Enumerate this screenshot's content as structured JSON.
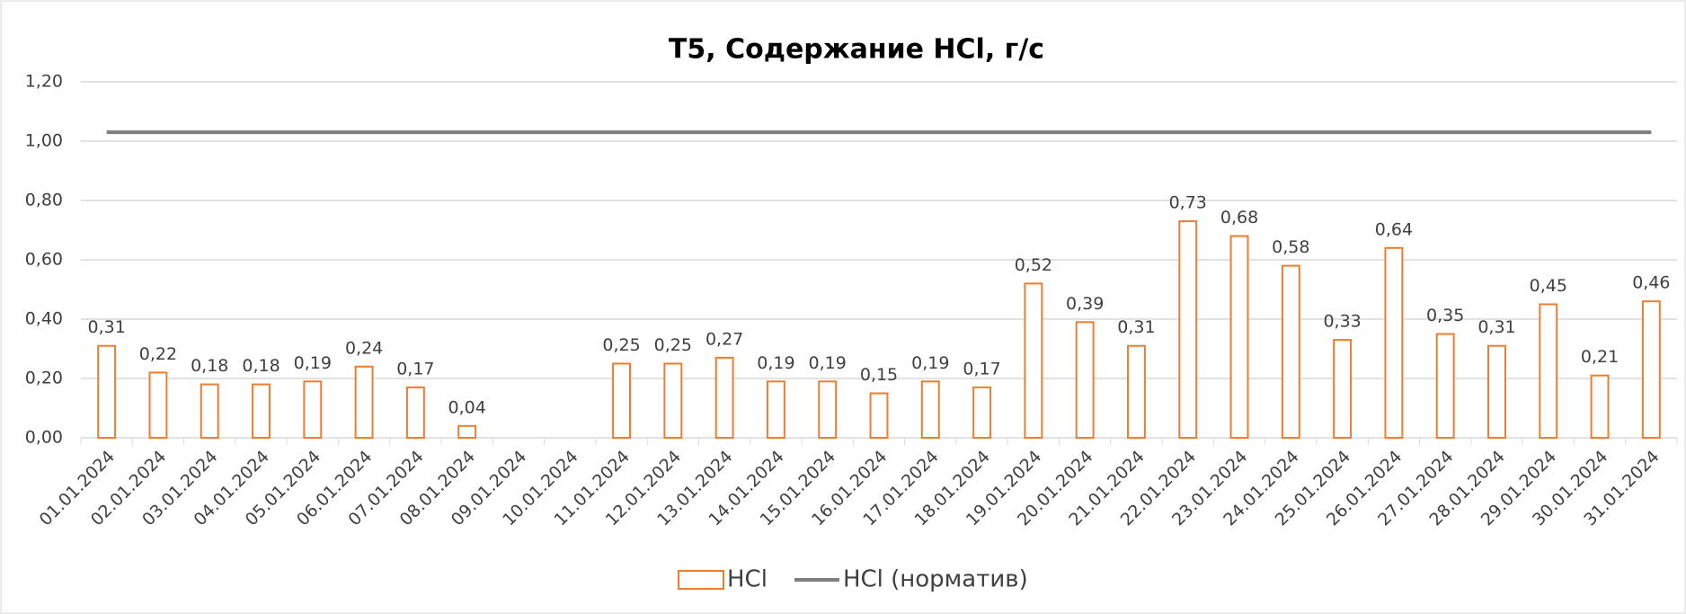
{
  "chart_data": {
    "type": "bar",
    "title": "T5, Содержание HCl, г/с",
    "categories": [
      "01.01.2024",
      "02.01.2024",
      "03.01.2024",
      "04.01.2024",
      "05.01.2024",
      "06.01.2024",
      "07.01.2024",
      "08.01.2024",
      "09.01.2024",
      "10.01.2024",
      "11.01.2024",
      "12.01.2024",
      "13.01.2024",
      "14.01.2024",
      "15.01.2024",
      "16.01.2024",
      "17.01.2024",
      "18.01.2024",
      "19.01.2024",
      "20.01.2024",
      "21.01.2024",
      "22.01.2024",
      "23.01.2024",
      "24.01.2024",
      "25.01.2024",
      "26.01.2024",
      "27.01.2024",
      "28.01.2024",
      "29.01.2024",
      "30.01.2024",
      "31.01.2024"
    ],
    "series": [
      {
        "name": "HCl",
        "type": "bar",
        "color": "#ed7d31",
        "values": [
          0.31,
          0.22,
          0.18,
          0.18,
          0.19,
          0.24,
          0.17,
          0.04,
          null,
          null,
          0.25,
          0.25,
          0.27,
          0.19,
          0.19,
          0.15,
          0.19,
          0.17,
          0.52,
          0.39,
          0.31,
          0.73,
          0.68,
          0.58,
          0.33,
          0.64,
          0.35,
          0.31,
          0.45,
          0.21,
          0.46
        ],
        "value_labels": [
          "0,31",
          "0,22",
          "0,18",
          "0,18",
          "0,19",
          "0,24",
          "0,17",
          "0,04",
          null,
          null,
          "0,25",
          "0,25",
          "0,27",
          "0,19",
          "0,19",
          "0,15",
          "0,19",
          "0,17",
          "0,52",
          "0,39",
          "0,31",
          "0,73",
          "0,68",
          "0,58",
          "0,33",
          "0,64",
          "0,35",
          "0,31",
          "0,45",
          "0,21",
          "0,46"
        ]
      },
      {
        "name": "HCl (норматив)",
        "type": "line",
        "color": "#7f7f7f",
        "values": [
          1.03,
          1.03,
          1.03,
          1.03,
          1.03,
          1.03,
          1.03,
          1.03,
          1.03,
          1.03,
          1.03,
          1.03,
          1.03,
          1.03,
          1.03,
          1.03,
          1.03,
          1.03,
          1.03,
          1.03,
          1.03,
          1.03,
          1.03,
          1.03,
          1.03,
          1.03,
          1.03,
          1.03,
          1.03,
          1.03,
          1.03
        ]
      }
    ],
    "ylim": [
      0,
      1.2
    ],
    "yticks": [
      {
        "value": 0,
        "label": "0,00"
      },
      {
        "value": 0.2,
        "label": "0,20"
      },
      {
        "value": 0.4,
        "label": "0,40"
      },
      {
        "value": 0.6,
        "label": "0,60"
      },
      {
        "value": 0.8,
        "label": "0,80"
      },
      {
        "value": 1,
        "label": "1,00"
      },
      {
        "value": 1.2,
        "label": "1,20"
      }
    ],
    "grid": true,
    "legend": "bottom"
  }
}
